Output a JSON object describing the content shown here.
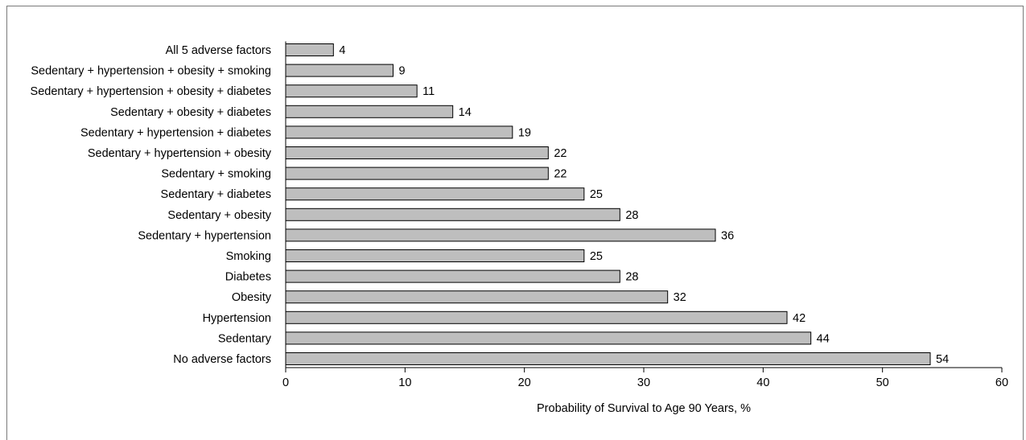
{
  "chart_data": {
    "type": "bar",
    "orientation": "horizontal",
    "categories": [
      "All 5 adverse factors",
      "Sedentary + hypertension + obesity + smoking",
      "Sedentary + hypertension + obesity + diabetes",
      "Sedentary + obesity + diabetes",
      "Sedentary + hypertension + diabetes",
      "Sedentary + hypertension + obesity",
      "Sedentary + smoking",
      "Sedentary + diabetes",
      "Sedentary + obesity",
      "Sedentary + hypertension",
      "Smoking",
      "Diabetes",
      "Obesity",
      "Hypertension",
      "Sedentary",
      "No adverse factors"
    ],
    "values": [
      4,
      9,
      11,
      14,
      19,
      22,
      22,
      25,
      28,
      36,
      25,
      28,
      32,
      42,
      44,
      54
    ],
    "title": "",
    "xlabel": "Probability of Survival to Age 90 Years, %",
    "ylabel": "",
    "xlim": [
      0,
      60
    ],
    "xticks": [
      0,
      10,
      20,
      30,
      40,
      50,
      60
    ],
    "grid": false,
    "bar_color": "#bebebe",
    "bar_edge_color": "#000000"
  }
}
